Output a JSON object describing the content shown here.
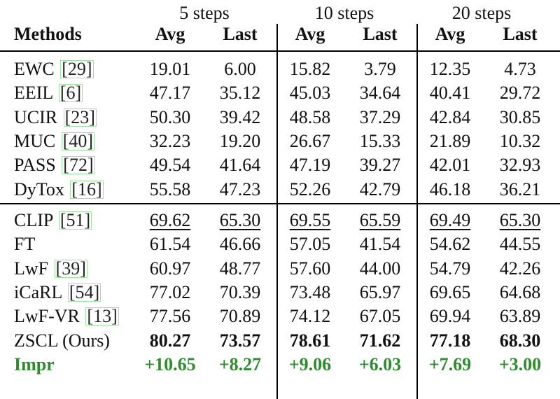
{
  "header": {
    "groups": [
      "5 steps",
      "10 steps",
      "20 steps"
    ],
    "methods_label": "Methods",
    "sub": [
      "Avg",
      "Last",
      "Avg",
      "Last",
      "Avg",
      "Last"
    ]
  },
  "rows_block1": [
    {
      "name": "EWC",
      "ref": "29",
      "vals": [
        "19.01",
        "6.00",
        "15.82",
        "3.79",
        "12.35",
        "4.73"
      ]
    },
    {
      "name": "EEIL",
      "ref": "6",
      "vals": [
        "47.17",
        "35.12",
        "45.03",
        "34.64",
        "40.41",
        "29.72"
      ]
    },
    {
      "name": "UCIR",
      "ref": "23",
      "vals": [
        "50.30",
        "39.42",
        "48.58",
        "37.29",
        "42.84",
        "30.85"
      ]
    },
    {
      "name": "MUC",
      "ref": "40",
      "vals": [
        "32.23",
        "19.20",
        "26.67",
        "15.33",
        "21.89",
        "10.32"
      ]
    },
    {
      "name": "PASS",
      "ref": "72",
      "vals": [
        "49.54",
        "41.64",
        "47.19",
        "39.27",
        "42.01",
        "32.93"
      ]
    },
    {
      "name": "DyTox",
      "ref": "16",
      "vals": [
        "55.58",
        "47.23",
        "52.26",
        "42.79",
        "46.18",
        "36.21"
      ]
    }
  ],
  "rows_block2": [
    {
      "name": "CLIP",
      "ref": "51",
      "vals": [
        "69.62",
        "65.30",
        "69.55",
        "65.59",
        "69.49",
        "65.30"
      ],
      "underline": true
    },
    {
      "name": "FT",
      "ref": "",
      "vals": [
        "61.54",
        "46.66",
        "57.05",
        "41.54",
        "54.62",
        "44.55"
      ]
    },
    {
      "name": "LwF",
      "ref": "39",
      "vals": [
        "60.97",
        "48.77",
        "57.60",
        "44.00",
        "54.79",
        "42.26"
      ]
    },
    {
      "name": "iCaRL",
      "ref": "54",
      "vals": [
        "77.02",
        "70.39",
        "73.48",
        "65.97",
        "69.65",
        "64.68"
      ]
    },
    {
      "name": "LwF-VR",
      "ref": "13",
      "vals": [
        "77.56",
        "70.89",
        "74.12",
        "67.05",
        "69.94",
        "63.89"
      ]
    },
    {
      "name": "ZSCL (Ours)",
      "ref": "",
      "vals": [
        "80.27",
        "73.57",
        "78.61",
        "71.62",
        "77.18",
        "68.30"
      ],
      "bold": true
    }
  ],
  "impr_row": {
    "name": "Impr",
    "vals": [
      "+10.65",
      "+8.27",
      "+9.06",
      "+6.03",
      "+7.69",
      "+3.00"
    ]
  },
  "colors": {
    "ref_box": "#9be39b",
    "impr": "#2e8b2e"
  }
}
